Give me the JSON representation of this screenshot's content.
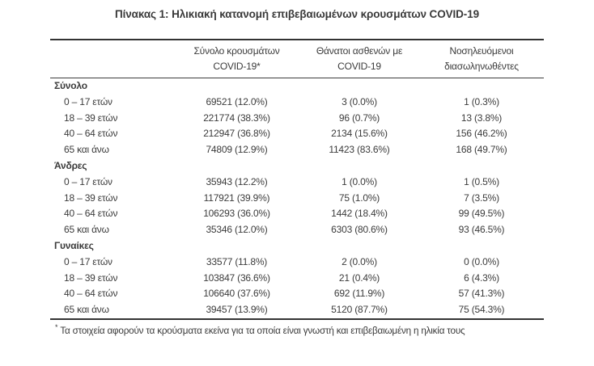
{
  "title": "Πίνακας 1: Ηλικιακή κατανομή επιβεβαιωμένων κρουσμάτων COVID-19",
  "colors": {
    "text": "#3b3b3b",
    "rule": "#333333",
    "background": "#ffffff"
  },
  "header": {
    "columns": [
      {
        "line1": "Σύνολο κρουσμάτων",
        "line2": "COVID-19*"
      },
      {
        "line1": "Θάνατοι ασθενών με",
        "line2": "COVID-19"
      },
      {
        "line1": "Νοσηλευόμενοι",
        "line2": "διασωληνωθέντες"
      }
    ]
  },
  "sections": [
    {
      "label": "Σύνολο",
      "rows": [
        {
          "age": "0 – 17 ετών",
          "cases": "69521 (12.0%)",
          "deaths": "3 (0.0%)",
          "intubated": "1 (0.3%)"
        },
        {
          "age": "18 – 39 ετών",
          "cases": "221774 (38.3%)",
          "deaths": "96 (0.7%)",
          "intubated": "13 (3.8%)"
        },
        {
          "age": "40 – 64 ετών",
          "cases": "212947 (36.8%)",
          "deaths": "2134 (15.6%)",
          "intubated": "156 (46.2%)"
        },
        {
          "age": "65 και άνω",
          "cases": "74809 (12.9%)",
          "deaths": "11423 (83.6%)",
          "intubated": "168 (49.7%)"
        }
      ]
    },
    {
      "label": "Άνδρες",
      "rows": [
        {
          "age": "0 – 17 ετών",
          "cases": "35943 (12.2%)",
          "deaths": "1 (0.0%)",
          "intubated": "1 (0.5%)"
        },
        {
          "age": "18 – 39 ετών",
          "cases": "117921 (39.9%)",
          "deaths": "75 (1.0%)",
          "intubated": "7 (3.5%)"
        },
        {
          "age": "40 – 64 ετών",
          "cases": "106293 (36.0%)",
          "deaths": "1442 (18.4%)",
          "intubated": "99 (49.5%)"
        },
        {
          "age": "65 και άνω",
          "cases": "35346 (12.0%)",
          "deaths": "6303 (80.6%)",
          "intubated": "93 (46.5%)"
        }
      ]
    },
    {
      "label": "Γυναίκες",
      "rows": [
        {
          "age": "0 – 17 ετών",
          "cases": "33577 (11.8%)",
          "deaths": "2 (0.0%)",
          "intubated": "0 (0.0%)"
        },
        {
          "age": "18 – 39 ετών",
          "cases": "103847 (36.6%)",
          "deaths": "21 (0.4%)",
          "intubated": "6 (4.3%)"
        },
        {
          "age": "40 – 64 ετών",
          "cases": "106640 (37.6%)",
          "deaths": "692 (11.9%)",
          "intubated": "57 (41.3%)"
        },
        {
          "age": "65 και άνω",
          "cases": "39457 (13.9%)",
          "deaths": "5120 (87.7%)",
          "intubated": "75 (54.3%)"
        }
      ]
    }
  ],
  "footnote": {
    "symbol": "*",
    "text": "Τα στοιχεία αφορούν τα κρούσματα εκείνα για τα οποία είναι γνωστή και επιβεβαιωμένη η ηλικία τους"
  }
}
